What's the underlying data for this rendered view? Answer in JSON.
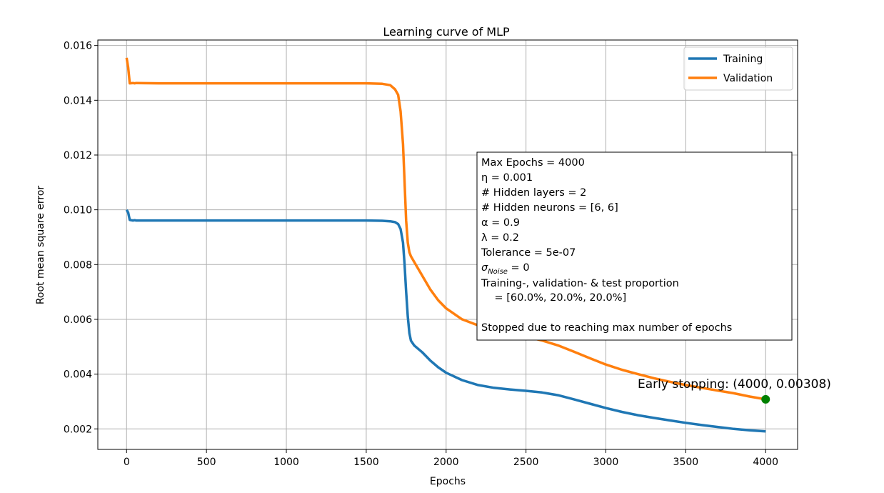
{
  "chart_data": {
    "type": "line",
    "title": "Learning curve of MLP",
    "xlabel": "Epochs",
    "ylabel": "Root mean square error",
    "xlim": [
      -180,
      4200
    ],
    "ylim": [
      0.00125,
      0.0162
    ],
    "x_ticks": [
      0,
      500,
      1000,
      1500,
      2000,
      2500,
      3000,
      3500,
      4000
    ],
    "x_tick_labels": [
      "0",
      "500",
      "1000",
      "1500",
      "2000",
      "2500",
      "3000",
      "3500",
      "4000"
    ],
    "y_ticks": [
      0.002,
      0.004,
      0.006,
      0.008,
      0.01,
      0.012,
      0.014,
      0.016
    ],
    "y_tick_labels": [
      "0.002",
      "0.004",
      "0.006",
      "0.008",
      "0.010",
      "0.012",
      "0.014",
      "0.016"
    ],
    "grid": true,
    "legend_position": "top-right",
    "series": [
      {
        "name": "Training",
        "color": "#1f77b4",
        "points": [
          [
            0,
            0.01
          ],
          [
            10,
            0.0099
          ],
          [
            20,
            0.00963
          ],
          [
            40,
            0.00961
          ],
          [
            50,
            0.00962
          ],
          [
            60,
            0.00961
          ],
          [
            200,
            0.00961
          ],
          [
            500,
            0.00961
          ],
          [
            1000,
            0.00961
          ],
          [
            1500,
            0.00961
          ],
          [
            1600,
            0.0096
          ],
          [
            1650,
            0.00958
          ],
          [
            1680,
            0.00955
          ],
          [
            1700,
            0.00948
          ],
          [
            1715,
            0.0093
          ],
          [
            1730,
            0.0088
          ],
          [
            1740,
            0.008
          ],
          [
            1750,
            0.007
          ],
          [
            1760,
            0.0061
          ],
          [
            1770,
            0.0055
          ],
          [
            1780,
            0.00522
          ],
          [
            1800,
            0.00505
          ],
          [
            1850,
            0.0048
          ],
          [
            1900,
            0.0045
          ],
          [
            1950,
            0.00425
          ],
          [
            2000,
            0.00405
          ],
          [
            2100,
            0.00378
          ],
          [
            2200,
            0.0036
          ],
          [
            2300,
            0.0035
          ],
          [
            2400,
            0.00344
          ],
          [
            2500,
            0.00339
          ],
          [
            2600,
            0.00333
          ],
          [
            2700,
            0.00323
          ],
          [
            2800,
            0.00308
          ],
          [
            2900,
            0.00292
          ],
          [
            3000,
            0.00276
          ],
          [
            3100,
            0.00262
          ],
          [
            3200,
            0.0025
          ],
          [
            3300,
            0.0024
          ],
          [
            3400,
            0.00231
          ],
          [
            3500,
            0.00222
          ],
          [
            3600,
            0.00214
          ],
          [
            3700,
            0.00207
          ],
          [
            3800,
            0.002
          ],
          [
            3900,
            0.00195
          ],
          [
            4000,
            0.00191
          ]
        ]
      },
      {
        "name": "Validation",
        "color": "#ff7f0e",
        "points": [
          [
            0,
            0.01555
          ],
          [
            10,
            0.0152
          ],
          [
            20,
            0.01462
          ],
          [
            40,
            0.01463
          ],
          [
            50,
            0.01462
          ],
          [
            60,
            0.01463
          ],
          [
            200,
            0.01462
          ],
          [
            500,
            0.01462
          ],
          [
            1000,
            0.01462
          ],
          [
            1500,
            0.01462
          ],
          [
            1600,
            0.0146
          ],
          [
            1650,
            0.01455
          ],
          [
            1680,
            0.0144
          ],
          [
            1700,
            0.0142
          ],
          [
            1715,
            0.0136
          ],
          [
            1730,
            0.0124
          ],
          [
            1740,
            0.011
          ],
          [
            1750,
            0.0096
          ],
          [
            1760,
            0.0088
          ],
          [
            1770,
            0.00845
          ],
          [
            1780,
            0.0083
          ],
          [
            1800,
            0.0081
          ],
          [
            1850,
            0.0076
          ],
          [
            1900,
            0.0071
          ],
          [
            1950,
            0.0067
          ],
          [
            2000,
            0.0064
          ],
          [
            2100,
            0.006
          ],
          [
            2200,
            0.00578
          ],
          [
            2300,
            0.00563
          ],
          [
            2400,
            0.0055
          ],
          [
            2500,
            0.00537
          ],
          [
            2600,
            0.00523
          ],
          [
            2700,
            0.00505
          ],
          [
            2800,
            0.00482
          ],
          [
            2900,
            0.00458
          ],
          [
            3000,
            0.00435
          ],
          [
            3100,
            0.00416
          ],
          [
            3200,
            0.004
          ],
          [
            3300,
            0.00385
          ],
          [
            3400,
            0.00372
          ],
          [
            3500,
            0.0036
          ],
          [
            3600,
            0.0035
          ],
          [
            3700,
            0.0034
          ],
          [
            3800,
            0.0033
          ],
          [
            3900,
            0.00318
          ],
          [
            4000,
            0.00308
          ]
        ]
      }
    ],
    "marker": {
      "x": 4000,
      "y": 0.00308,
      "color": "#008000"
    },
    "annotation": "Early stopping: (4000, 0.00308)",
    "info_box_lines": [
      "Max Epochs = 4000",
      "η = 0.001",
      "# Hidden layers = 2",
      "# Hidden neurons = [6, 6]",
      "α = 0.9",
      "λ = 0.2",
      "Tolerance = 5e-07",
      "σ",
      "Training-, validation- & test proportion",
      "    = [60.0%, 20.0%, 20.0%]",
      "",
      "Stopped due to reaching max number of epochs"
    ],
    "sigma_subscript": "Noise",
    "sigma_value": " = 0"
  }
}
